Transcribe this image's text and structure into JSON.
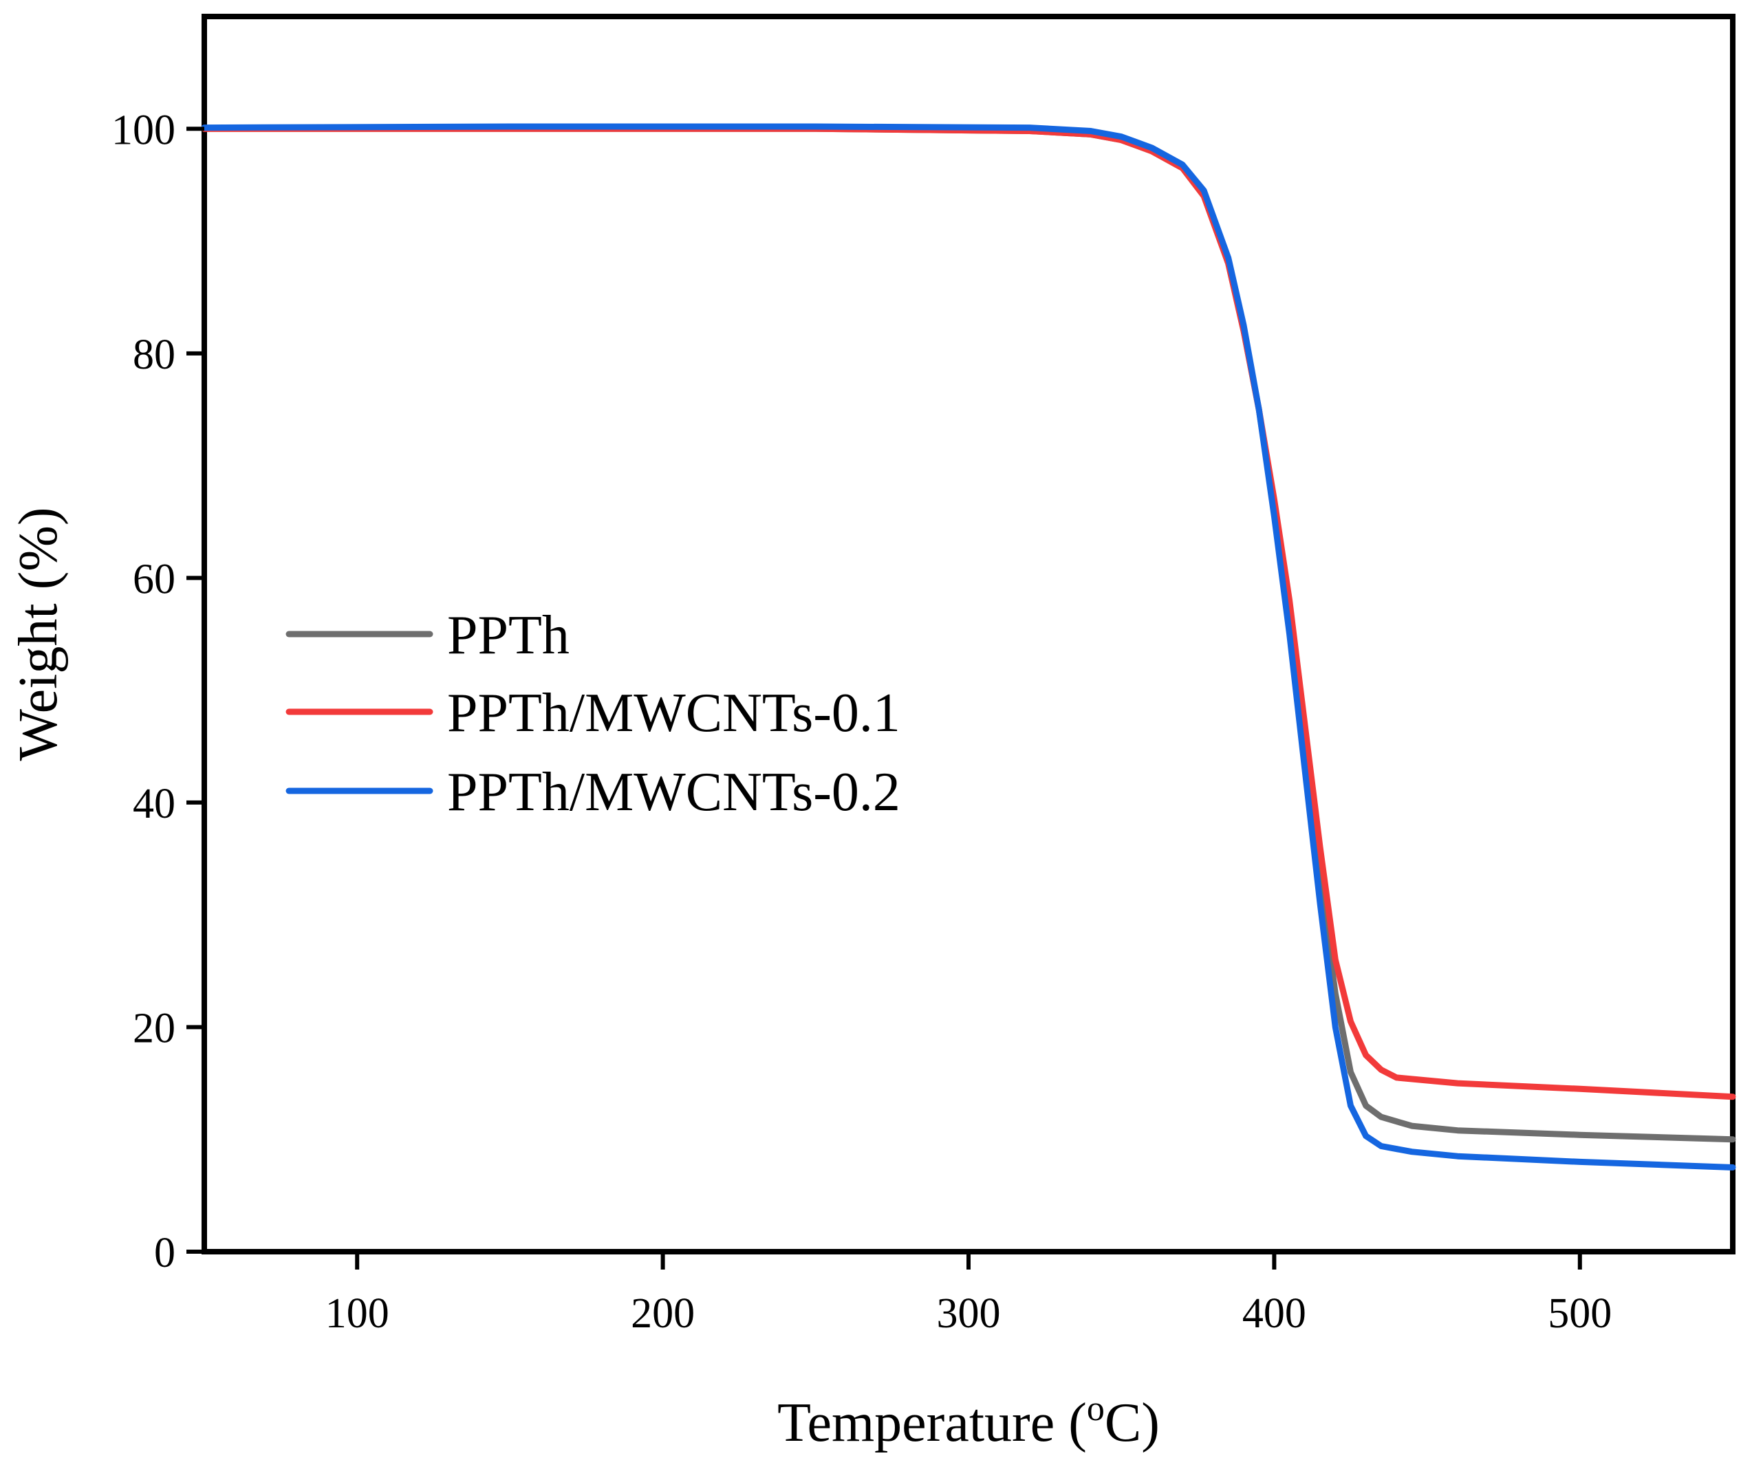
{
  "chart_data": {
    "type": "line",
    "title": "",
    "xlabel": "Temperature (",
    "xlabel_sup": "o",
    "xlabel_unit": "C)",
    "ylabel": "Weight (%)",
    "xlim": [
      50,
      550
    ],
    "ylim": [
      0,
      110
    ],
    "xticks": [
      100,
      200,
      300,
      400,
      500
    ],
    "yticks": [
      0,
      20,
      40,
      60,
      80,
      100
    ],
    "xtick_labels": [
      "100",
      "200",
      "300",
      "400",
      "500"
    ],
    "ytick_labels": [
      "0",
      "20",
      "40",
      "60",
      "80",
      "100"
    ],
    "grid": false,
    "legend_position": "center-left",
    "series": [
      {
        "name": "PPTh",
        "color": "#6e6e6e",
        "points": [
          [
            50,
            100
          ],
          [
            150,
            100
          ],
          [
            250,
            100
          ],
          [
            320,
            99.8
          ],
          [
            340,
            99.5
          ],
          [
            350,
            99.0
          ],
          [
            360,
            98.0
          ],
          [
            370,
            96.5
          ],
          [
            377,
            94
          ],
          [
            385,
            88
          ],
          [
            390,
            82
          ],
          [
            395,
            75
          ],
          [
            400,
            66
          ],
          [
            405,
            56
          ],
          [
            410,
            45
          ],
          [
            415,
            33
          ],
          [
            420,
            23
          ],
          [
            425,
            16
          ],
          [
            430,
            13
          ],
          [
            435,
            12
          ],
          [
            445,
            11.2
          ],
          [
            460,
            10.8
          ],
          [
            500,
            10.4
          ],
          [
            550,
            10.0
          ]
        ]
      },
      {
        "name": "PPTh/MWCNTs-0.1",
        "color": "#f23a3a",
        "points": [
          [
            50,
            100
          ],
          [
            150,
            100
          ],
          [
            250,
            100
          ],
          [
            320,
            99.8
          ],
          [
            340,
            99.5
          ],
          [
            350,
            99.0
          ],
          [
            360,
            98.0
          ],
          [
            370,
            96.5
          ],
          [
            377,
            94
          ],
          [
            385,
            88
          ],
          [
            390,
            82
          ],
          [
            395,
            75
          ],
          [
            400,
            67
          ],
          [
            405,
            58
          ],
          [
            410,
            47
          ],
          [
            415,
            36
          ],
          [
            420,
            26
          ],
          [
            425,
            20.5
          ],
          [
            430,
            17.5
          ],
          [
            435,
            16.2
          ],
          [
            440,
            15.5
          ],
          [
            460,
            15.0
          ],
          [
            500,
            14.5
          ],
          [
            550,
            13.8
          ]
        ]
      },
      {
        "name": "PPTh/MWCNTs-0.2",
        "color": "#1566e0",
        "points": [
          [
            50,
            100.1
          ],
          [
            150,
            100.2
          ],
          [
            250,
            100.2
          ],
          [
            320,
            100.1
          ],
          [
            340,
            99.8
          ],
          [
            350,
            99.3
          ],
          [
            360,
            98.3
          ],
          [
            370,
            96.8
          ],
          [
            377,
            94.5
          ],
          [
            385,
            88.5
          ],
          [
            390,
            82.5
          ],
          [
            395,
            75
          ],
          [
            400,
            65.5
          ],
          [
            405,
            55
          ],
          [
            410,
            43
          ],
          [
            415,
            31
          ],
          [
            420,
            20
          ],
          [
            425,
            13
          ],
          [
            430,
            10.3
          ],
          [
            435,
            9.4
          ],
          [
            445,
            8.9
          ],
          [
            460,
            8.5
          ],
          [
            500,
            8.0
          ],
          [
            550,
            7.5
          ]
        ]
      }
    ]
  }
}
